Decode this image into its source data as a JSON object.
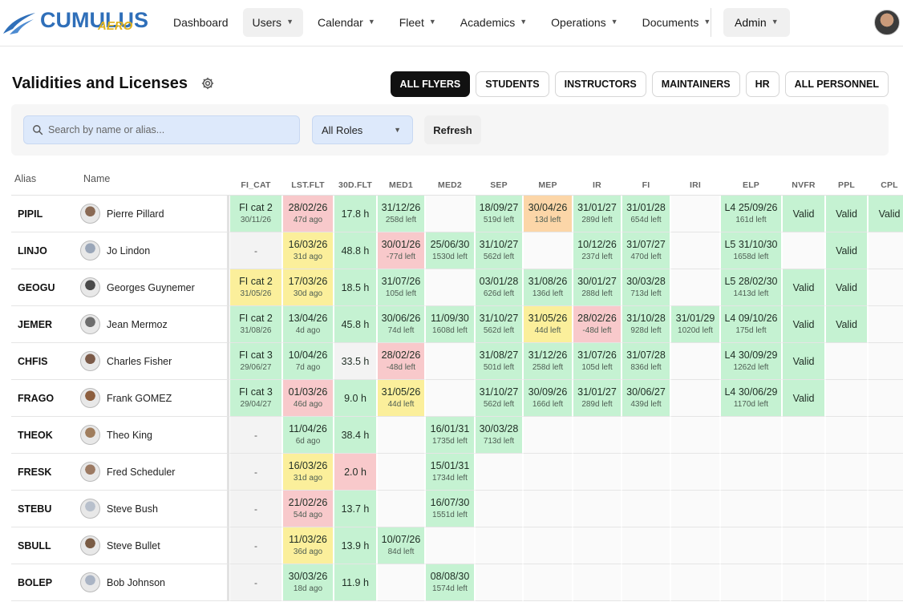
{
  "app": {
    "logo_main": "CUMULUS",
    "logo_sub": "AERO"
  },
  "nav": {
    "items": [
      {
        "label": "Dashboard",
        "dropdown": false,
        "active": false
      },
      {
        "label": "Users",
        "dropdown": true,
        "active": true
      },
      {
        "label": "Calendar",
        "dropdown": true,
        "active": false
      },
      {
        "label": "Fleet",
        "dropdown": true,
        "active": false
      },
      {
        "label": "Academics",
        "dropdown": true,
        "active": false
      },
      {
        "label": "Operations",
        "dropdown": true,
        "active": false
      },
      {
        "label": "Documents",
        "dropdown": true,
        "active": false
      }
    ],
    "admin_label": "Admin"
  },
  "page": {
    "title": "Validities and Licenses",
    "filters": [
      {
        "label": "ALL FLYERS",
        "active": true
      },
      {
        "label": "STUDENTS",
        "active": false
      },
      {
        "label": "INSTRUCTORS",
        "active": false
      },
      {
        "label": "MAINTAINERS",
        "active": false
      },
      {
        "label": "HR",
        "active": false
      },
      {
        "label": "ALL PERSONNEL",
        "active": false
      }
    ]
  },
  "toolbar": {
    "search_placeholder": "Search by name or alias...",
    "search_value": "",
    "roles_value": "All Roles",
    "refresh_label": "Refresh"
  },
  "table": {
    "header_alias": "Alias",
    "header_name": "Name",
    "columns": [
      "FI_CAT",
      "LST.FLT",
      "30D.FLT",
      "MED1",
      "MED2",
      "SEP",
      "MEP",
      "IR",
      "FI",
      "IRI",
      "ELP",
      "NVFR",
      "PPL",
      "CPL"
    ],
    "rows": [
      {
        "alias": "PIPIL",
        "name": "Pierre Pillard",
        "avatar": "#8a6a55",
        "cells": [
          {
            "c": "green",
            "t": "FI cat 2",
            "s": "30/11/26"
          },
          {
            "c": "red",
            "t": "28/02/26",
            "s": "47d ago"
          },
          {
            "c": "green",
            "t": "17.8 h"
          },
          {
            "c": "green",
            "t": "31/12/26",
            "s": "258d left"
          },
          {
            "c": "none"
          },
          {
            "c": "green",
            "t": "18/09/27",
            "s": "519d left"
          },
          {
            "c": "orange",
            "t": "30/04/26",
            "s": "13d left"
          },
          {
            "c": "green",
            "t": "31/01/27",
            "s": "289d left"
          },
          {
            "c": "green",
            "t": "31/01/28",
            "s": "654d left"
          },
          {
            "c": "none"
          },
          {
            "c": "green",
            "t": "L4 25/09/26",
            "s": "161d left"
          },
          {
            "c": "green",
            "t": "Valid"
          },
          {
            "c": "green",
            "t": "Valid"
          },
          {
            "c": "green",
            "t": "Valid"
          }
        ]
      },
      {
        "alias": "LINJO",
        "name": "Jo Lindon",
        "avatar": "#9aa6b8",
        "cells": [
          {
            "c": "grey",
            "t": "-"
          },
          {
            "c": "yellow",
            "t": "16/03/26",
            "s": "31d ago"
          },
          {
            "c": "green",
            "t": "48.8 h"
          },
          {
            "c": "red",
            "t": "30/01/26",
            "s": "-77d left"
          },
          {
            "c": "green",
            "t": "25/06/30",
            "s": "1530d left"
          },
          {
            "c": "green",
            "t": "31/10/27",
            "s": "562d left"
          },
          {
            "c": "none"
          },
          {
            "c": "green",
            "t": "10/12/26",
            "s": "237d left"
          },
          {
            "c": "green",
            "t": "31/07/27",
            "s": "470d left"
          },
          {
            "c": "none"
          },
          {
            "c": "green",
            "t": "L5 31/10/30",
            "s": "1658d left"
          },
          {
            "c": "none"
          },
          {
            "c": "green",
            "t": "Valid"
          },
          {
            "c": "none"
          }
        ]
      },
      {
        "alias": "GEOGU",
        "name": "Georges Guynemer",
        "avatar": "#4a4a4a",
        "cells": [
          {
            "c": "yellow",
            "t": "FI cat 2",
            "s": "31/05/26"
          },
          {
            "c": "yellow",
            "t": "17/03/26",
            "s": "30d ago"
          },
          {
            "c": "green",
            "t": "18.5 h"
          },
          {
            "c": "green",
            "t": "31/07/26",
            "s": "105d left"
          },
          {
            "c": "none"
          },
          {
            "c": "green",
            "t": "03/01/28",
            "s": "626d left"
          },
          {
            "c": "green",
            "t": "31/08/26",
            "s": "136d left"
          },
          {
            "c": "green",
            "t": "30/01/27",
            "s": "288d left"
          },
          {
            "c": "green",
            "t": "30/03/28",
            "s": "713d left"
          },
          {
            "c": "none"
          },
          {
            "c": "green",
            "t": "L5 28/02/30",
            "s": "1413d left"
          },
          {
            "c": "green",
            "t": "Valid"
          },
          {
            "c": "green",
            "t": "Valid"
          },
          {
            "c": "none"
          }
        ]
      },
      {
        "alias": "JEMER",
        "name": "Jean Mermoz",
        "avatar": "#6d6d6d",
        "cells": [
          {
            "c": "green",
            "t": "FI cat 2",
            "s": "31/08/26"
          },
          {
            "c": "green",
            "t": "13/04/26",
            "s": "4d ago"
          },
          {
            "c": "green",
            "t": "45.8 h"
          },
          {
            "c": "green",
            "t": "30/06/26",
            "s": "74d left"
          },
          {
            "c": "green",
            "t": "11/09/30",
            "s": "1608d left"
          },
          {
            "c": "green",
            "t": "31/10/27",
            "s": "562d left"
          },
          {
            "c": "yellow",
            "t": "31/05/26",
            "s": "44d left"
          },
          {
            "c": "red",
            "t": "28/02/26",
            "s": "-48d left"
          },
          {
            "c": "green",
            "t": "31/10/28",
            "s": "928d left"
          },
          {
            "c": "green",
            "t": "31/01/29",
            "s": "1020d left"
          },
          {
            "c": "green",
            "t": "L4 09/10/26",
            "s": "175d left"
          },
          {
            "c": "green",
            "t": "Valid"
          },
          {
            "c": "green",
            "t": "Valid"
          },
          {
            "c": "none"
          }
        ]
      },
      {
        "alias": "CHFIS",
        "name": "Charles Fisher",
        "avatar": "#7b5a48",
        "cells": [
          {
            "c": "green",
            "t": "FI cat 3",
            "s": "29/06/27"
          },
          {
            "c": "green",
            "t": "10/04/26",
            "s": "7d ago"
          },
          {
            "c": "grey",
            "t": "33.5 h"
          },
          {
            "c": "red",
            "t": "28/02/26",
            "s": "-48d left"
          },
          {
            "c": "none"
          },
          {
            "c": "green",
            "t": "31/08/27",
            "s": "501d left"
          },
          {
            "c": "green",
            "t": "31/12/26",
            "s": "258d left"
          },
          {
            "c": "green",
            "t": "31/07/26",
            "s": "105d left"
          },
          {
            "c": "green",
            "t": "31/07/28",
            "s": "836d left"
          },
          {
            "c": "none"
          },
          {
            "c": "green",
            "t": "L4 30/09/29",
            "s": "1262d left"
          },
          {
            "c": "green",
            "t": "Valid"
          },
          {
            "c": "none"
          },
          {
            "c": "none"
          }
        ]
      },
      {
        "alias": "FRAGO",
        "name": "Frank GOMEZ",
        "avatar": "#8d5f3f",
        "cells": [
          {
            "c": "green",
            "t": "FI cat 3",
            "s": "29/04/27"
          },
          {
            "c": "red",
            "t": "01/03/26",
            "s": "46d ago"
          },
          {
            "c": "green",
            "t": "9.0 h"
          },
          {
            "c": "yellow",
            "t": "31/05/26",
            "s": "44d left"
          },
          {
            "c": "none"
          },
          {
            "c": "green",
            "t": "31/10/27",
            "s": "562d left"
          },
          {
            "c": "green",
            "t": "30/09/26",
            "s": "166d left"
          },
          {
            "c": "green",
            "t": "31/01/27",
            "s": "289d left"
          },
          {
            "c": "green",
            "t": "30/06/27",
            "s": "439d left"
          },
          {
            "c": "none"
          },
          {
            "c": "green",
            "t": "L4 30/06/29",
            "s": "1170d left"
          },
          {
            "c": "green",
            "t": "Valid"
          },
          {
            "c": "none"
          },
          {
            "c": "none"
          }
        ]
      },
      {
        "alias": "THEOK",
        "name": "Theo King",
        "avatar": "#a07e5e",
        "cells": [
          {
            "c": "grey",
            "t": "-"
          },
          {
            "c": "green",
            "t": "11/04/26",
            "s": "6d ago"
          },
          {
            "c": "green",
            "t": "38.4 h"
          },
          {
            "c": "none"
          },
          {
            "c": "green",
            "t": "16/01/31",
            "s": "1735d left"
          },
          {
            "c": "green",
            "t": "30/03/28",
            "s": "713d left"
          },
          {
            "c": "none"
          },
          {
            "c": "none"
          },
          {
            "c": "none"
          },
          {
            "c": "none"
          },
          {
            "c": "none"
          },
          {
            "c": "none"
          },
          {
            "c": "none"
          },
          {
            "c": "none"
          }
        ]
      },
      {
        "alias": "FRESK",
        "name": "Fred Scheduler",
        "avatar": "#9c7a63",
        "cells": [
          {
            "c": "grey",
            "t": "-"
          },
          {
            "c": "yellow",
            "t": "16/03/26",
            "s": "31d ago"
          },
          {
            "c": "red",
            "t": "2.0 h"
          },
          {
            "c": "none"
          },
          {
            "c": "green",
            "t": "15/01/31",
            "s": "1734d left"
          },
          {
            "c": "none"
          },
          {
            "c": "none"
          },
          {
            "c": "none"
          },
          {
            "c": "none"
          },
          {
            "c": "none"
          },
          {
            "c": "none"
          },
          {
            "c": "none"
          },
          {
            "c": "none"
          },
          {
            "c": "none"
          }
        ]
      },
      {
        "alias": "STEBU",
        "name": "Steve Bush",
        "avatar": "#b8c0cc",
        "cells": [
          {
            "c": "grey",
            "t": "-"
          },
          {
            "c": "red",
            "t": "21/02/26",
            "s": "54d ago"
          },
          {
            "c": "green",
            "t": "13.7 h"
          },
          {
            "c": "none"
          },
          {
            "c": "green",
            "t": "16/07/30",
            "s": "1551d left"
          },
          {
            "c": "none"
          },
          {
            "c": "none"
          },
          {
            "c": "none"
          },
          {
            "c": "none"
          },
          {
            "c": "none"
          },
          {
            "c": "none"
          },
          {
            "c": "none"
          },
          {
            "c": "none"
          },
          {
            "c": "none"
          }
        ]
      },
      {
        "alias": "SBULL",
        "name": "Steve Bullet",
        "avatar": "#7a5c45",
        "cells": [
          {
            "c": "grey",
            "t": "-"
          },
          {
            "c": "yellow",
            "t": "11/03/26",
            "s": "36d ago"
          },
          {
            "c": "green",
            "t": "13.9 h"
          },
          {
            "c": "green",
            "t": "10/07/26",
            "s": "84d left"
          },
          {
            "c": "none"
          },
          {
            "c": "none"
          },
          {
            "c": "none"
          },
          {
            "c": "none"
          },
          {
            "c": "none"
          },
          {
            "c": "none"
          },
          {
            "c": "none"
          },
          {
            "c": "none"
          },
          {
            "c": "none"
          },
          {
            "c": "none"
          }
        ]
      },
      {
        "alias": "BOLEP",
        "name": "Bob Johnson",
        "avatar": "#aab4c4",
        "cells": [
          {
            "c": "grey",
            "t": "-"
          },
          {
            "c": "green",
            "t": "30/03/26",
            "s": "18d ago"
          },
          {
            "c": "green",
            "t": "11.9 h"
          },
          {
            "c": "none"
          },
          {
            "c": "green",
            "t": "08/08/30",
            "s": "1574d left"
          },
          {
            "c": "none"
          },
          {
            "c": "none"
          },
          {
            "c": "none"
          },
          {
            "c": "none"
          },
          {
            "c": "none"
          },
          {
            "c": "none"
          },
          {
            "c": "none"
          },
          {
            "c": "none"
          },
          {
            "c": "none"
          }
        ]
      }
    ]
  }
}
